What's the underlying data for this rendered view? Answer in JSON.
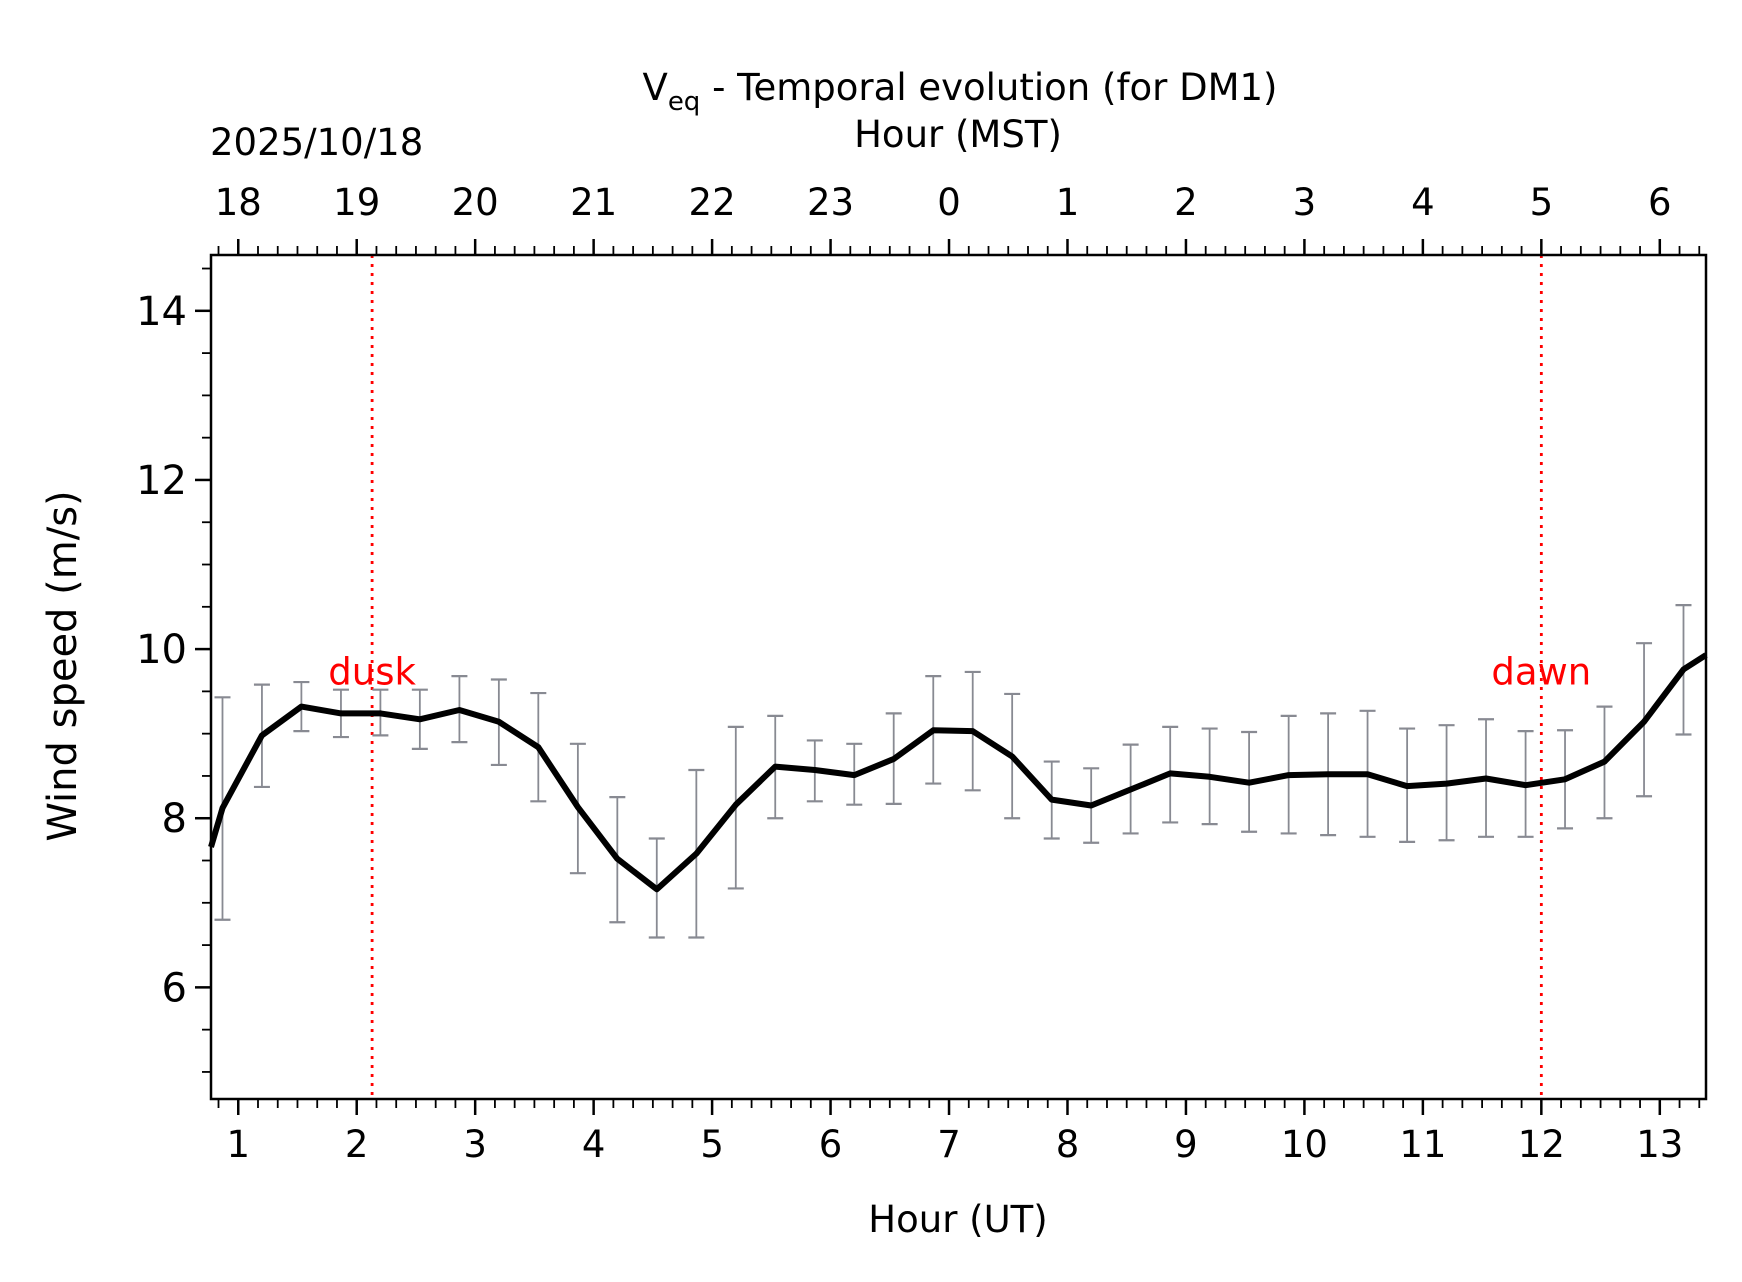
{
  "chart_data": {
    "type": "line",
    "title_main": "V",
    "title_sub": "eq",
    "title_rest": " - Temporal evolution (for DM1)",
    "date_label": "2025/10/18",
    "xlabel": "Hour (UT)",
    "xlabel_top": "Hour (MST)",
    "ylabel": "Wind speed (m/s)",
    "xlim": [
      0.77,
      13.39
    ],
    "ylim": [
      4.68,
      14.66
    ],
    "x_ticks": [
      1,
      2,
      3,
      4,
      5,
      6,
      7,
      8,
      9,
      10,
      11,
      12,
      13
    ],
    "x_tick_labels": [
      "1",
      "2",
      "3",
      "4",
      "5",
      "6",
      "7",
      "8",
      "9",
      "10",
      "11",
      "12",
      "13"
    ],
    "x_top_tick_labels": [
      "18",
      "19",
      "20",
      "21",
      "22",
      "23",
      "0",
      "1",
      "2",
      "3",
      "4",
      "5",
      "6"
    ],
    "y_ticks": [
      6,
      8,
      10,
      12,
      14
    ],
    "y_tick_labels": [
      "6",
      "8",
      "10",
      "12",
      "14"
    ],
    "grid": false,
    "line_color": "#000000",
    "errorbar_color": "#888a92",
    "marker_color": "#ff0000",
    "markers": [
      {
        "label": "dusk",
        "x": 2.13
      },
      {
        "label": "dawn",
        "x": 12.0
      }
    ],
    "series": [
      {
        "name": "Veq",
        "x": [
          0.77,
          0.867,
          1.2,
          1.533,
          1.867,
          2.2,
          2.533,
          2.867,
          3.2,
          3.533,
          3.867,
          4.2,
          4.533,
          4.867,
          5.2,
          5.533,
          5.867,
          6.2,
          6.533,
          6.867,
          7.2,
          7.533,
          7.867,
          8.2,
          8.533,
          8.867,
          9.2,
          9.533,
          9.867,
          10.2,
          10.533,
          10.867,
          11.2,
          11.533,
          11.867,
          12.2,
          12.533,
          12.867,
          13.2,
          13.39
        ],
        "y": [
          7.66,
          8.12,
          8.98,
          9.32,
          9.24,
          9.24,
          9.17,
          9.28,
          9.14,
          8.84,
          8.13,
          7.52,
          7.16,
          7.58,
          8.16,
          8.61,
          8.57,
          8.51,
          8.7,
          9.04,
          9.03,
          8.73,
          8.22,
          8.15,
          8.34,
          8.53,
          8.49,
          8.42,
          8.51,
          8.52,
          8.52,
          8.38,
          8.41,
          8.47,
          8.39,
          8.46,
          8.67,
          9.14,
          9.76,
          9.93
        ]
      }
    ],
    "errorbars": {
      "x": [
        0.867,
        1.2,
        1.533,
        1.867,
        2.2,
        2.533,
        2.867,
        3.2,
        3.533,
        3.867,
        4.2,
        4.533,
        4.867,
        5.2,
        5.533,
        5.867,
        6.2,
        6.533,
        6.867,
        7.2,
        7.533,
        7.867,
        8.2,
        8.533,
        8.867,
        9.2,
        9.533,
        9.867,
        10.2,
        10.533,
        10.867,
        11.2,
        11.533,
        11.867,
        12.2,
        12.533,
        12.867,
        13.2
      ],
      "upper": [
        9.43,
        9.58,
        9.61,
        9.52,
        9.52,
        9.52,
        9.68,
        9.64,
        9.48,
        8.88,
        8.25,
        7.76,
        8.57,
        9.08,
        9.21,
        8.92,
        8.88,
        9.24,
        9.68,
        9.73,
        9.47,
        8.67,
        8.59,
        8.87,
        9.08,
        9.06,
        9.02,
        9.21,
        9.24,
        9.27,
        9.06,
        9.1,
        9.17,
        9.03,
        9.04,
        9.32,
        10.07,
        10.52
      ],
      "lower": [
        6.8,
        8.37,
        9.03,
        8.96,
        8.98,
        8.82,
        8.9,
        8.63,
        8.2,
        7.35,
        6.77,
        6.59,
        6.59,
        7.17,
        8.0,
        8.2,
        8.16,
        8.17,
        8.41,
        8.33,
        8.0,
        7.76,
        7.71,
        7.82,
        7.95,
        7.93,
        7.84,
        7.82,
        7.8,
        7.78,
        7.72,
        7.74,
        7.78,
        7.78,
        7.88,
        8.0,
        8.26,
        8.99
      ]
    }
  }
}
